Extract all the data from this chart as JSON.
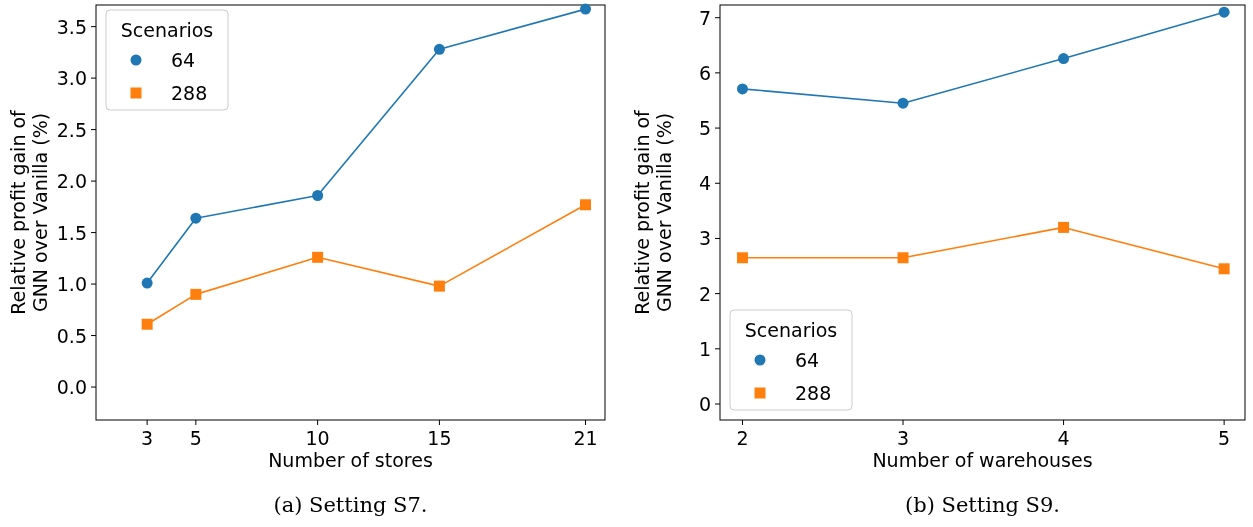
{
  "chart_data": [
    {
      "type": "line",
      "xlabel": "Number of stores",
      "ylabel": "Relative profit gain of\nGNN over Vanilla (%)",
      "legend_title": "Scenarios",
      "legend": "top left",
      "x": [
        3,
        5,
        10,
        15,
        21
      ],
      "xlim": [
        0.9,
        21.8
      ],
      "xticks": [
        3,
        5,
        10,
        15,
        21
      ],
      "ylim": [
        -0.32,
        3.71
      ],
      "yticks": [
        {
          "value": 0,
          "label": "0.0"
        },
        {
          "value": 0.5,
          "label": "0.5"
        },
        {
          "value": 1,
          "label": "1.0"
        },
        {
          "value": 1.5,
          "label": "1.5"
        },
        {
          "value": 2,
          "label": "2.0"
        },
        {
          "value": 2.5,
          "label": "2.5"
        },
        {
          "value": 3,
          "label": "3.0"
        },
        {
          "value": 3.5,
          "label": "3.5"
        }
      ],
      "annotations": [
        "(a) Setting S7."
      ],
      "series": [
        {
          "name": "64",
          "color": "#1f77b4",
          "marker": "circle",
          "values": [
            1.01,
            1.64,
            1.86,
            3.28,
            3.67
          ]
        },
        {
          "name": "288",
          "color": "#ff7f0e",
          "marker": "square",
          "values": [
            0.61,
            0.9,
            1.26,
            0.98,
            1.77
          ]
        }
      ]
    },
    {
      "type": "line",
      "xlabel": "Number of warehouses",
      "ylabel": "Relative profit gain of\nGNN over Vanilla (%)",
      "legend_title": "Scenarios",
      "legend": "bottom left",
      "x": [
        2,
        3,
        4,
        5
      ],
      "xlim": [
        1.86,
        5.13
      ],
      "xticks": [
        2,
        3,
        4,
        5
      ],
      "ylim": [
        -0.29,
        7.23
      ],
      "yticks": [
        0,
        1,
        2,
        3,
        4,
        5,
        6,
        7
      ],
      "annotations": [
        "(b) Setting S9."
      ],
      "series": [
        {
          "name": "64",
          "color": "#1f77b4",
          "marker": "circle",
          "values": [
            5.71,
            5.45,
            6.26,
            7.1
          ]
        },
        {
          "name": "288",
          "color": "#ff7f0e",
          "marker": "square",
          "values": [
            2.65,
            2.65,
            3.2,
            2.45
          ]
        }
      ]
    }
  ]
}
